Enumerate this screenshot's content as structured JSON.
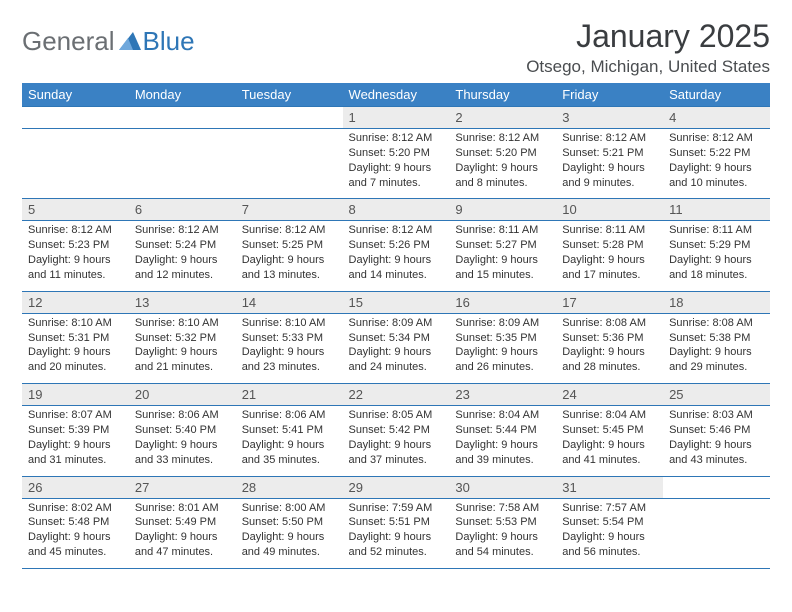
{
  "logo": {
    "text_left": "General",
    "text_right": "Blue",
    "triangle_color": "#2e76b6"
  },
  "header": {
    "month_title": "January 2025",
    "location": "Otsego, Michigan, United States"
  },
  "colors": {
    "header_bg": "#3a81c4",
    "header_fg": "#ffffff",
    "row_border": "#2e76b6",
    "daynum_bg": "#ececec",
    "text": "#333333",
    "title_color": "#3a3d40",
    "logo_gray": "#6b6f73",
    "logo_blue": "#2e76b6"
  },
  "typography": {
    "title_fontsize": 32,
    "location_fontsize": 17,
    "header_cell_fontsize": 13,
    "daynum_fontsize": 13,
    "info_fontsize": 11
  },
  "day_labels": [
    "Sunday",
    "Monday",
    "Tuesday",
    "Wednesday",
    "Thursday",
    "Friday",
    "Saturday"
  ],
  "weeks": [
    [
      {
        "n": "",
        "sunrise": "",
        "sunset": "",
        "daylight": ""
      },
      {
        "n": "",
        "sunrise": "",
        "sunset": "",
        "daylight": ""
      },
      {
        "n": "",
        "sunrise": "",
        "sunset": "",
        "daylight": ""
      },
      {
        "n": "1",
        "sunrise": "Sunrise: 8:12 AM",
        "sunset": "Sunset: 5:20 PM",
        "daylight": "Daylight: 9 hours and 7 minutes."
      },
      {
        "n": "2",
        "sunrise": "Sunrise: 8:12 AM",
        "sunset": "Sunset: 5:20 PM",
        "daylight": "Daylight: 9 hours and 8 minutes."
      },
      {
        "n": "3",
        "sunrise": "Sunrise: 8:12 AM",
        "sunset": "Sunset: 5:21 PM",
        "daylight": "Daylight: 9 hours and 9 minutes."
      },
      {
        "n": "4",
        "sunrise": "Sunrise: 8:12 AM",
        "sunset": "Sunset: 5:22 PM",
        "daylight": "Daylight: 9 hours and 10 minutes."
      }
    ],
    [
      {
        "n": "5",
        "sunrise": "Sunrise: 8:12 AM",
        "sunset": "Sunset: 5:23 PM",
        "daylight": "Daylight: 9 hours and 11 minutes."
      },
      {
        "n": "6",
        "sunrise": "Sunrise: 8:12 AM",
        "sunset": "Sunset: 5:24 PM",
        "daylight": "Daylight: 9 hours and 12 minutes."
      },
      {
        "n": "7",
        "sunrise": "Sunrise: 8:12 AM",
        "sunset": "Sunset: 5:25 PM",
        "daylight": "Daylight: 9 hours and 13 minutes."
      },
      {
        "n": "8",
        "sunrise": "Sunrise: 8:12 AM",
        "sunset": "Sunset: 5:26 PM",
        "daylight": "Daylight: 9 hours and 14 minutes."
      },
      {
        "n": "9",
        "sunrise": "Sunrise: 8:11 AM",
        "sunset": "Sunset: 5:27 PM",
        "daylight": "Daylight: 9 hours and 15 minutes."
      },
      {
        "n": "10",
        "sunrise": "Sunrise: 8:11 AM",
        "sunset": "Sunset: 5:28 PM",
        "daylight": "Daylight: 9 hours and 17 minutes."
      },
      {
        "n": "11",
        "sunrise": "Sunrise: 8:11 AM",
        "sunset": "Sunset: 5:29 PM",
        "daylight": "Daylight: 9 hours and 18 minutes."
      }
    ],
    [
      {
        "n": "12",
        "sunrise": "Sunrise: 8:10 AM",
        "sunset": "Sunset: 5:31 PM",
        "daylight": "Daylight: 9 hours and 20 minutes."
      },
      {
        "n": "13",
        "sunrise": "Sunrise: 8:10 AM",
        "sunset": "Sunset: 5:32 PM",
        "daylight": "Daylight: 9 hours and 21 minutes."
      },
      {
        "n": "14",
        "sunrise": "Sunrise: 8:10 AM",
        "sunset": "Sunset: 5:33 PM",
        "daylight": "Daylight: 9 hours and 23 minutes."
      },
      {
        "n": "15",
        "sunrise": "Sunrise: 8:09 AM",
        "sunset": "Sunset: 5:34 PM",
        "daylight": "Daylight: 9 hours and 24 minutes."
      },
      {
        "n": "16",
        "sunrise": "Sunrise: 8:09 AM",
        "sunset": "Sunset: 5:35 PM",
        "daylight": "Daylight: 9 hours and 26 minutes."
      },
      {
        "n": "17",
        "sunrise": "Sunrise: 8:08 AM",
        "sunset": "Sunset: 5:36 PM",
        "daylight": "Daylight: 9 hours and 28 minutes."
      },
      {
        "n": "18",
        "sunrise": "Sunrise: 8:08 AM",
        "sunset": "Sunset: 5:38 PM",
        "daylight": "Daylight: 9 hours and 29 minutes."
      }
    ],
    [
      {
        "n": "19",
        "sunrise": "Sunrise: 8:07 AM",
        "sunset": "Sunset: 5:39 PM",
        "daylight": "Daylight: 9 hours and 31 minutes."
      },
      {
        "n": "20",
        "sunrise": "Sunrise: 8:06 AM",
        "sunset": "Sunset: 5:40 PM",
        "daylight": "Daylight: 9 hours and 33 minutes."
      },
      {
        "n": "21",
        "sunrise": "Sunrise: 8:06 AM",
        "sunset": "Sunset: 5:41 PM",
        "daylight": "Daylight: 9 hours and 35 minutes."
      },
      {
        "n": "22",
        "sunrise": "Sunrise: 8:05 AM",
        "sunset": "Sunset: 5:42 PM",
        "daylight": "Daylight: 9 hours and 37 minutes."
      },
      {
        "n": "23",
        "sunrise": "Sunrise: 8:04 AM",
        "sunset": "Sunset: 5:44 PM",
        "daylight": "Daylight: 9 hours and 39 minutes."
      },
      {
        "n": "24",
        "sunrise": "Sunrise: 8:04 AM",
        "sunset": "Sunset: 5:45 PM",
        "daylight": "Daylight: 9 hours and 41 minutes."
      },
      {
        "n": "25",
        "sunrise": "Sunrise: 8:03 AM",
        "sunset": "Sunset: 5:46 PM",
        "daylight": "Daylight: 9 hours and 43 minutes."
      }
    ],
    [
      {
        "n": "26",
        "sunrise": "Sunrise: 8:02 AM",
        "sunset": "Sunset: 5:48 PM",
        "daylight": "Daylight: 9 hours and 45 minutes."
      },
      {
        "n": "27",
        "sunrise": "Sunrise: 8:01 AM",
        "sunset": "Sunset: 5:49 PM",
        "daylight": "Daylight: 9 hours and 47 minutes."
      },
      {
        "n": "28",
        "sunrise": "Sunrise: 8:00 AM",
        "sunset": "Sunset: 5:50 PM",
        "daylight": "Daylight: 9 hours and 49 minutes."
      },
      {
        "n": "29",
        "sunrise": "Sunrise: 7:59 AM",
        "sunset": "Sunset: 5:51 PM",
        "daylight": "Daylight: 9 hours and 52 minutes."
      },
      {
        "n": "30",
        "sunrise": "Sunrise: 7:58 AM",
        "sunset": "Sunset: 5:53 PM",
        "daylight": "Daylight: 9 hours and 54 minutes."
      },
      {
        "n": "31",
        "sunrise": "Sunrise: 7:57 AM",
        "sunset": "Sunset: 5:54 PM",
        "daylight": "Daylight: 9 hours and 56 minutes."
      },
      {
        "n": "",
        "sunrise": "",
        "sunset": "",
        "daylight": ""
      }
    ]
  ]
}
